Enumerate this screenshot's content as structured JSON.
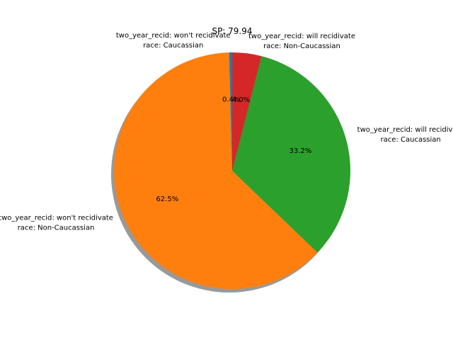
{
  "chart_data": {
    "type": "pie",
    "title": "SP: 79.94",
    "slices": [
      {
        "label_lines": [
          "two_year_recid: won't recidivate",
          "race: Caucassian"
        ],
        "pct_label": "0.4%",
        "value": 0.4,
        "color": "#1f77b4"
      },
      {
        "label_lines": [
          "two_year_recid: won't recidivate",
          "race: Non-Caucassian"
        ],
        "pct_label": "62.5%",
        "value": 62.5,
        "color": "#ff7f0e"
      },
      {
        "label_lines": [
          "two_year_recid: will recidivate",
          "race: Caucassian"
        ],
        "pct_label": "33.2%",
        "value": 33.2,
        "color": "#2ca02c"
      },
      {
        "label_lines": [
          "two_year_recid: will recidivate",
          "race: Non-Caucassian"
        ],
        "pct_label": "4.0%",
        "value": 4.0,
        "color": "#d62728"
      }
    ],
    "start_angle_deg": 90,
    "direction": "counterclockwise",
    "shadow": true
  }
}
